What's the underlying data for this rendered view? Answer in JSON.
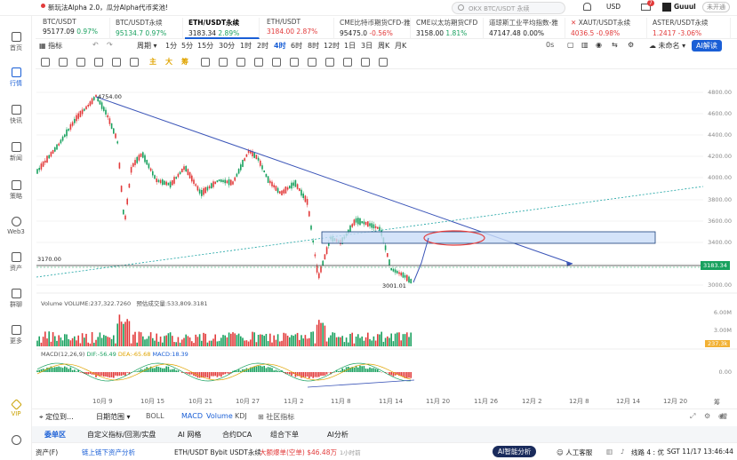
{
  "topbar": {
    "announcement": "新玩法Alpha 2.0，瓜分Alpha代币奖池!",
    "search_placeholder": "OKX BTC/USDT 永续",
    "currency": "USD",
    "notif_count": "7",
    "username": "Guuul",
    "verify_label": "未开通"
  },
  "sidebar": {
    "items": [
      {
        "label": "首页"
      },
      {
        "label": "行情"
      },
      {
        "label": "快讯"
      },
      {
        "label": "新闻"
      },
      {
        "label": "策略"
      },
      {
        "label": "Web3"
      },
      {
        "label": "资产"
      },
      {
        "label": "群聊"
      },
      {
        "label": "更多"
      },
      {
        "label": "VIP"
      }
    ]
  },
  "tickers": [
    {
      "name": "BTC/USDT",
      "price": "95177.09",
      "change": "0.97%"
    },
    {
      "name": "BTC/USDT永续",
      "price": "95134.7",
      "change": "0.97%"
    },
    {
      "name": "ETH/USDT永续",
      "price": "3183.34",
      "change": "2.89%"
    },
    {
      "name": "ETH/USDT",
      "price": "3184.00",
      "change": "2.87%"
    },
    {
      "name": "CME比特币期货CFD-雅",
      "price": "95475.0",
      "change": "-0.56%"
    },
    {
      "name": "CME以太坊期货CFD",
      "price": "3158.00",
      "change": "1.81%"
    },
    {
      "name": "道琼斯工业平均指数-雅",
      "price": "47147.48",
      "change": "0.00%"
    },
    {
      "name": "XAUT/USDT永续",
      "price": "4036.5",
      "change": "-0.98%"
    },
    {
      "name": "ASTER/USDT永续",
      "price": "1.2417",
      "change": "-3.06%"
    }
  ],
  "toolbar": {
    "indicator": "指标",
    "period": "周期",
    "timeframes": [
      "1分",
      "5分",
      "15分",
      "30分",
      "1时",
      "2时",
      "4时",
      "6时",
      "8时",
      "12时",
      "1日",
      "3日",
      "周K",
      "月K"
    ],
    "selected_timeframe": "4时",
    "countdown": "0s",
    "unnamed": "未命名",
    "ai_label": "AI解读"
  },
  "chart": {
    "y_ticks": [
      "4800.00",
      "4600.00",
      "4400.00",
      "4200.00",
      "4000.00",
      "3800.00",
      "3600.00",
      "3400.00",
      "3200.00",
      "3000.00"
    ],
    "high_label": "4754.00",
    "low_label": "3001.01",
    "line_label": "3170.00",
    "current_price": "3183.34",
    "volume_label": "Volume  VOLUME:237,322.7260",
    "volume_forecast": "预估成交量:533,809.3181",
    "volume_ticks": [
      "6.00M",
      "3.00M"
    ],
    "volume_current": "237.3k",
    "macd_label": "MACD(12,26,9)",
    "dif": "DIF:-56.49",
    "dea": "DEA:-65.68",
    "macd": "MACD:18.39",
    "macd_tick": "0.00",
    "x_ticks": [
      "10月 9",
      "10月 15",
      "10月 21",
      "10月 27",
      "11月 2",
      "11月 8",
      "11月 14",
      "11月 20",
      "11月 26",
      "12月 2",
      "12月 8",
      "12月 14",
      "12月 20"
    ],
    "corner_labels": [
      "筹",
      "增"
    ]
  },
  "bottom_bar": {
    "locate": "定位到...",
    "date_range": "日期范围",
    "boll": "BOLL",
    "macd": "MACD",
    "volume": "Volume",
    "kdj": "KDJ",
    "community": "社区指标"
  },
  "tabs": [
    "委单区",
    "自定义指标/回测/实盘",
    "AI 网格",
    "合约DCA",
    "组合下单",
    "AI分析"
  ],
  "status": {
    "asset": "资产(F)",
    "onchain": "链上链下资产分析",
    "ticker_text": "ETH/USDT Bybit USDT永续",
    "liquidation": "大额爆单(空单) $46.48万",
    "time_ago": "1小时前",
    "ai_analysis": "AI智能分析",
    "support": "人工客服",
    "line": "线路 4 : 优",
    "clock": "SGT 11/17 13:46:44"
  }
}
